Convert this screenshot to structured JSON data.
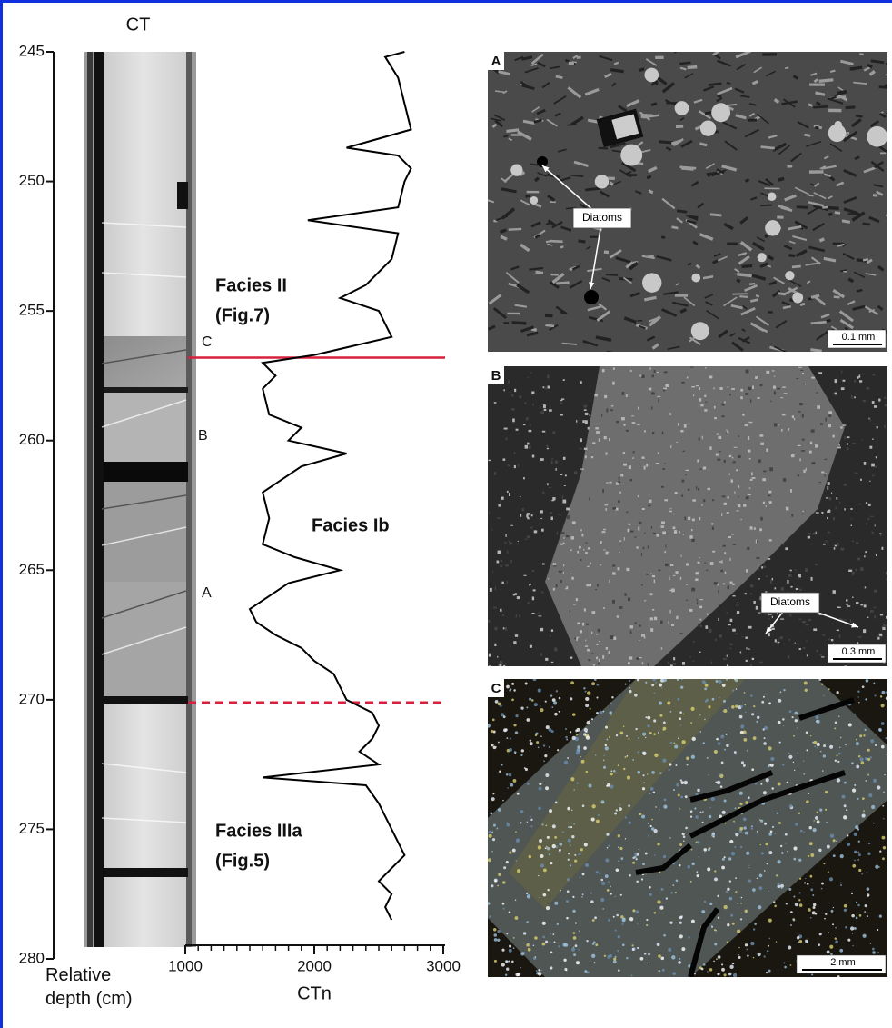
{
  "chart_data": {
    "type": "line",
    "xlabel": "Relative depth (cm)",
    "ylabel": "CTn",
    "x": [
      245,
      245.2,
      246,
      247,
      248,
      248.7,
      249,
      249.5,
      250,
      251,
      251.5,
      252,
      253,
      254,
      254.5,
      255,
      255.5,
      256,
      256.7,
      257,
      257.5,
      258,
      259,
      259.5,
      260,
      260.5,
      261,
      262,
      263,
      264,
      264.5,
      265,
      265.5,
      266,
      266.5,
      267,
      267.5,
      268,
      268.5,
      269,
      269.5,
      270,
      270.5,
      271,
      271.5,
      272,
      272.5,
      273,
      273.3,
      274,
      274.5,
      275,
      275.5,
      276,
      276.5,
      277,
      277.5,
      278,
      278.5
    ],
    "values": [
      2700,
      2550,
      2650,
      2700,
      2750,
      2250,
      2650,
      2750,
      2700,
      2650,
      1950,
      2650,
      2600,
      2400,
      2200,
      2500,
      2550,
      2600,
      2000,
      1600,
      1700,
      1600,
      1650,
      1900,
      1800,
      2250,
      1900,
      1600,
      1650,
      1600,
      1850,
      2200,
      1800,
      1650,
      1500,
      1550,
      1700,
      1900,
      2000,
      2150,
      2200,
      2250,
      2450,
      2500,
      2450,
      2350,
      2500,
      1600,
      2400,
      2500,
      2550,
      2600,
      2650,
      2700,
      2600,
      2500,
      2600,
      2550,
      2600
    ],
    "color": "#000000",
    "xlim": [
      245,
      280
    ],
    "xticks": [
      245,
      250,
      255,
      260,
      265,
      270,
      275,
      280
    ],
    "ylim": [
      1000,
      3000
    ],
    "yticks": [
      1000,
      2000,
      3000
    ],
    "yminorticks": [
      1100,
      1200,
      1300,
      1400,
      1500,
      1600,
      1700,
      1800,
      1900,
      2100,
      2200,
      2300,
      2400,
      2500,
      2600,
      2700,
      2800,
      2900
    ],
    "boundaries": [
      {
        "depth": 256.8,
        "style": "solid",
        "color": "#d8203c"
      },
      {
        "depth": 270.1,
        "style": "dashed",
        "color": "#d8203c"
      }
    ],
    "annotations": [
      "Facies II",
      "(Fig.7)",
      "Facies Ib",
      "Facies IIIa",
      "(Fig.5)",
      "C",
      "B",
      "A"
    ]
  },
  "figure": {
    "core_label": "CT",
    "panels": [
      {
        "label": "A",
        "annotation": "Diatoms",
        "scale": "0.1 mm"
      },
      {
        "label": "B",
        "annotation": "Diatoms",
        "scale": "0.3 mm"
      },
      {
        "label": "C",
        "scale": "2 mm"
      }
    ]
  }
}
